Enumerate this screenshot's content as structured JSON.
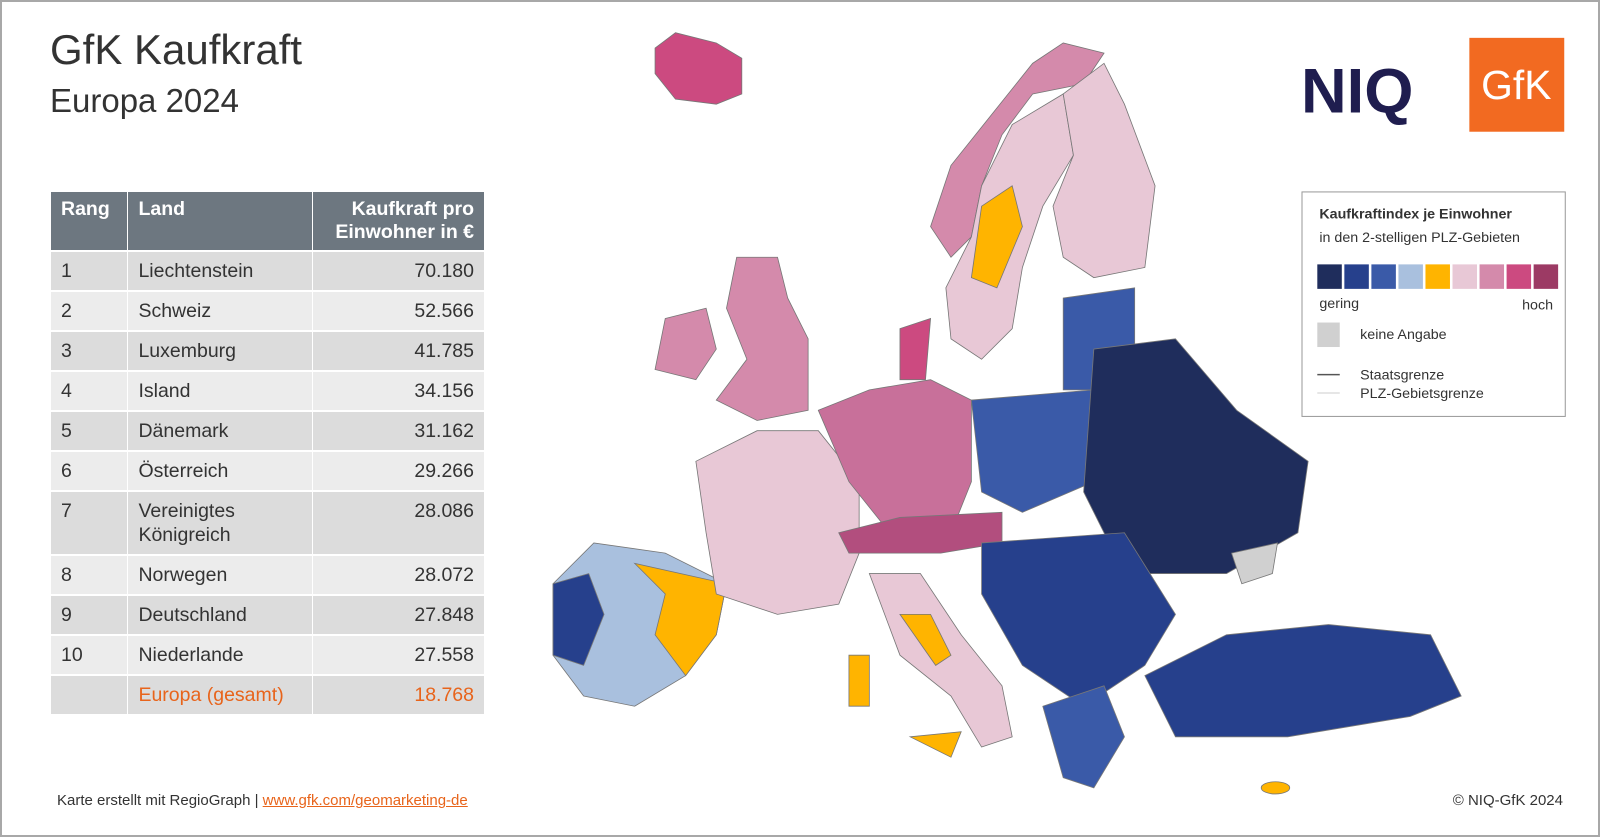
{
  "header": {
    "title": "GfK Kaufkraft",
    "subtitle": "Europa 2024"
  },
  "logos": {
    "niq": "NIQ",
    "gfk": "GfK"
  },
  "table": {
    "columns": [
      "Rang",
      "Land",
      "Kaufkraft pro Einwohner in €"
    ],
    "rows": [
      [
        "1",
        "Liechtenstein",
        "70.180"
      ],
      [
        "2",
        "Schweiz",
        "52.566"
      ],
      [
        "3",
        "Luxemburg",
        "41.785"
      ],
      [
        "4",
        "Island",
        "34.156"
      ],
      [
        "5",
        "Dänemark",
        "31.162"
      ],
      [
        "6",
        "Österreich",
        "29.266"
      ],
      [
        "7",
        "Vereinigtes Königreich",
        "28.086"
      ],
      [
        "8",
        "Norwegen",
        "28.072"
      ],
      [
        "9",
        "Deutschland",
        "27.848"
      ],
      [
        "10",
        "Niederlande",
        "27.558"
      ]
    ],
    "total": [
      "Europa (gesamt)",
      "18.768"
    ]
  },
  "legend": {
    "title": "Kaufkraftindex je Einwohner",
    "subtitle": "in den 2-stelligen PLZ-Gebieten",
    "scale_colors": [
      "#1f2d5c",
      "#26408c",
      "#3a5aa8",
      "#a9c0de",
      "#ffb400",
      "#e8c8d6",
      "#d48aab",
      "#cc4a80",
      "#9c3a64"
    ],
    "low": "gering",
    "high": "hoch",
    "no_data": "keine Angabe",
    "no_data_color": "#d0d0d0",
    "state_border": "Staatsgrenze",
    "zip_border": "PLZ-Gebietsgrenze"
  },
  "footer": {
    "credit": "Karte erstellt mit RegioGraph | ",
    "link": "www.gfk.com/geomarketing-de",
    "copyright": "© NIQ-GfK 2024"
  }
}
